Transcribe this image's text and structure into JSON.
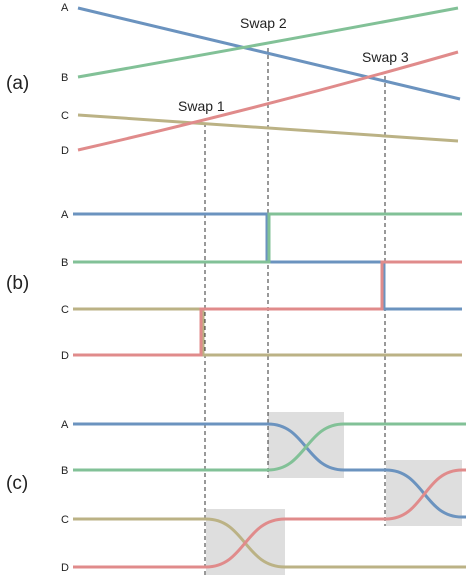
{
  "panels": [
    {
      "id": "a",
      "label": "(a)"
    },
    {
      "id": "b",
      "label": "(b)"
    },
    {
      "id": "c",
      "label": "(c)"
    }
  ],
  "tracks": [
    "A",
    "B",
    "C",
    "D"
  ],
  "swaps": [
    "Swap 1",
    "Swap 2",
    "Swap 3"
  ],
  "colors": {
    "A": "#6b93bf",
    "B": "#82c197",
    "C": "#bbb285",
    "D": "#e08b8b",
    "dashed": "#333333",
    "highlight_box": "#dedede"
  }
}
